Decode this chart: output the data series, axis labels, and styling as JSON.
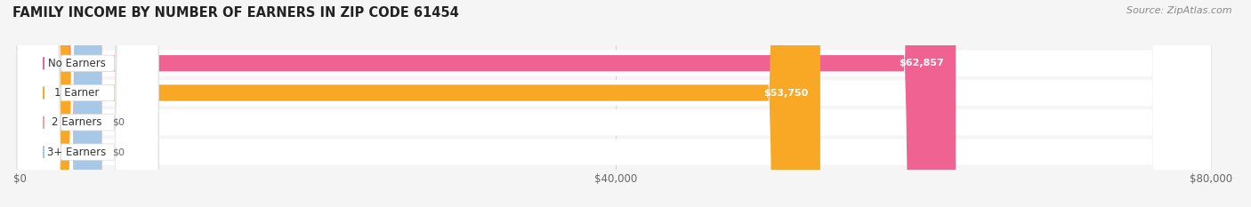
{
  "title": "FAMILY INCOME BY NUMBER OF EARNERS IN ZIP CODE 61454",
  "source": "Source: ZipAtlas.com",
  "categories": [
    "No Earners",
    "1 Earner",
    "2 Earners",
    "3+ Earners"
  ],
  "values": [
    62857,
    53750,
    0,
    0
  ],
  "bar_colors": [
    "#f06292",
    "#f9a825",
    "#f4a0a0",
    "#a8c8e8"
  ],
  "label_dot_colors": [
    "#f06292",
    "#f9a825",
    "#f4a0a0",
    "#a8c8e8"
  ],
  "xlim": [
    0,
    80000
  ],
  "xticks": [
    0,
    40000,
    80000
  ],
  "xtick_labels": [
    "$0",
    "$40,000",
    "$80,000"
  ],
  "bar_height": 0.55,
  "background_color": "#f5f5f5",
  "row_bg_color": "#ebebeb",
  "value_label_color": "#ffffff",
  "zero_label_color": "#666666"
}
